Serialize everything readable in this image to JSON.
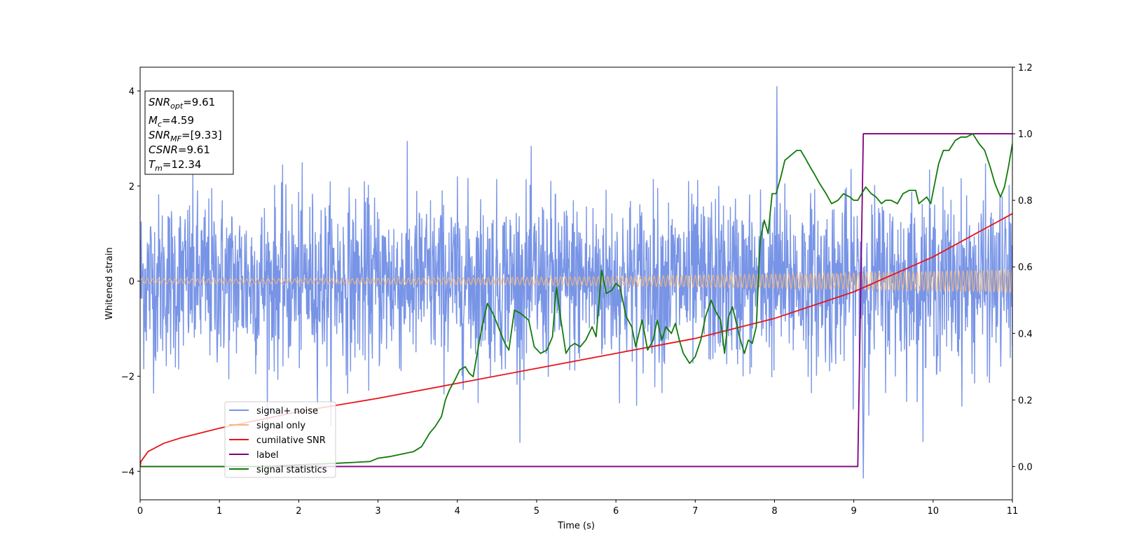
{
  "chart_data": {
    "type": "line",
    "xlabel": "Time (s)",
    "ylabel": "Whitened strain",
    "xlim": [
      0,
      11
    ],
    "ylim_left": [
      -4.6,
      4.5
    ],
    "ylim_right": [
      -0.1,
      1.2
    ],
    "x_ticks": [
      0,
      1,
      2,
      3,
      4,
      5,
      6,
      7,
      8,
      9,
      10,
      11
    ],
    "y_ticks_left": [
      -4,
      -2,
      0,
      2,
      4
    ],
    "y_ticks_right": [
      0.0,
      0.2,
      0.4,
      0.6,
      0.8,
      1.0,
      1.2
    ],
    "y_tick_labels_right": [
      "0.0",
      "0.2",
      "0.4",
      "0.6",
      "0.8",
      "1.0",
      "1.2"
    ],
    "legend_position": "lower-left",
    "stats_box": {
      "snr_opt": {
        "main": "SNR",
        "sub": "opt",
        "value": "=9.61"
      },
      "mc": {
        "main": "M",
        "sub": "c",
        "value": "=4.59"
      },
      "snr_mf": {
        "main": "SNR",
        "sub": "MF",
        "value": "=[9.33]"
      },
      "csnr": {
        "main": "CSNR",
        "sub": "",
        "value": "=9.61"
      },
      "tm": {
        "main": "T",
        "sub": "m",
        "value": "=12.34"
      }
    },
    "series": [
      {
        "name": "signal+ noise",
        "color": "#7894e6",
        "axis": "left",
        "description_values": {
          "noise_sigma": 0.9,
          "max": 4.1,
          "min": -4.15
        }
      },
      {
        "name": "signal only",
        "color": "#f5b87a",
        "axis": "left",
        "envelope_start": 0.05,
        "envelope_end": 0.25
      },
      {
        "name": "cumilative SNR",
        "color": "#e8141a",
        "axis": "right",
        "x": [
          0,
          0.01,
          0.1,
          0.3,
          0.5,
          1,
          2,
          3,
          4,
          5,
          6,
          7,
          8,
          9,
          10,
          10.5,
          11
        ],
        "y": [
          0.0,
          0.015,
          0.045,
          0.07,
          0.085,
          0.115,
          0.165,
          0.205,
          0.25,
          0.295,
          0.34,
          0.385,
          0.445,
          0.525,
          0.63,
          0.695,
          0.76
        ]
      },
      {
        "name": "label",
        "color": "#800080",
        "axis": "right",
        "x": [
          0,
          9.05,
          9.12,
          11
        ],
        "y": [
          0,
          0,
          1,
          1
        ]
      },
      {
        "name": "signal statistics",
        "color": "#117a0b",
        "axis": "right",
        "x": [
          0,
          0.5,
          1,
          1.5,
          2,
          2.5,
          2.9,
          3.0,
          3.15,
          3.25,
          3.35,
          3.45,
          3.55,
          3.65,
          3.72,
          3.8,
          3.85,
          3.9,
          3.97,
          4.03,
          4.1,
          4.15,
          4.2,
          4.28,
          4.33,
          4.38,
          4.45,
          4.5,
          4.55,
          4.6,
          4.65,
          4.72,
          4.8,
          4.9,
          4.97,
          5.05,
          5.13,
          5.2,
          5.25,
          5.3,
          5.37,
          5.42,
          5.48,
          5.55,
          5.62,
          5.7,
          5.75,
          5.82,
          5.88,
          5.95,
          6.0,
          6.05,
          6.13,
          6.2,
          6.25,
          6.33,
          6.4,
          6.47,
          6.52,
          6.58,
          6.63,
          6.7,
          6.75,
          6.8,
          6.85,
          6.93,
          7.0,
          7.07,
          7.13,
          7.2,
          7.25,
          7.32,
          7.37,
          7.42,
          7.47,
          7.52,
          7.57,
          7.62,
          7.67,
          7.72,
          7.77,
          7.82,
          7.87,
          7.92,
          7.97,
          8.02,
          8.08,
          8.13,
          8.18,
          8.23,
          8.28,
          8.33,
          8.38,
          8.45,
          8.5,
          8.57,
          8.65,
          8.72,
          8.8,
          8.87,
          8.95,
          9.0,
          9.05,
          9.1,
          9.15,
          9.22,
          9.28,
          9.35,
          9.4,
          9.47,
          9.55,
          9.62,
          9.7,
          9.78,
          9.82,
          9.87,
          9.92,
          9.97,
          10.02,
          10.07,
          10.13,
          10.2,
          10.28,
          10.35,
          10.42,
          10.5,
          10.58,
          10.65,
          10.72,
          10.78,
          10.85,
          10.9,
          10.95,
          11.0
        ],
        "y": [
          0.0,
          0.0,
          0.0,
          0.0,
          0.005,
          0.01,
          0.015,
          0.025,
          0.03,
          0.035,
          0.04,
          0.045,
          0.06,
          0.1,
          0.12,
          0.15,
          0.2,
          0.23,
          0.26,
          0.29,
          0.3,
          0.28,
          0.27,
          0.38,
          0.44,
          0.49,
          0.46,
          0.43,
          0.4,
          0.37,
          0.35,
          0.47,
          0.46,
          0.44,
          0.36,
          0.34,
          0.35,
          0.39,
          0.54,
          0.45,
          0.34,
          0.36,
          0.37,
          0.36,
          0.38,
          0.42,
          0.39,
          0.59,
          0.52,
          0.53,
          0.55,
          0.54,
          0.45,
          0.42,
          0.36,
          0.44,
          0.35,
          0.38,
          0.44,
          0.38,
          0.42,
          0.4,
          0.43,
          0.38,
          0.34,
          0.31,
          0.33,
          0.38,
          0.45,
          0.5,
          0.47,
          0.44,
          0.34,
          0.45,
          0.48,
          0.43,
          0.38,
          0.34,
          0.38,
          0.37,
          0.42,
          0.68,
          0.74,
          0.7,
          0.82,
          0.82,
          0.87,
          0.92,
          0.93,
          0.94,
          0.95,
          0.95,
          0.93,
          0.9,
          0.88,
          0.85,
          0.82,
          0.79,
          0.8,
          0.82,
          0.81,
          0.8,
          0.8,
          0.82,
          0.84,
          0.82,
          0.81,
          0.79,
          0.8,
          0.8,
          0.79,
          0.82,
          0.83,
          0.83,
          0.79,
          0.8,
          0.81,
          0.79,
          0.85,
          0.91,
          0.95,
          0.95,
          0.98,
          0.99,
          0.99,
          1.0,
          0.97,
          0.95,
          0.9,
          0.85,
          0.81,
          0.84,
          0.9,
          0.97
        ]
      }
    ]
  }
}
